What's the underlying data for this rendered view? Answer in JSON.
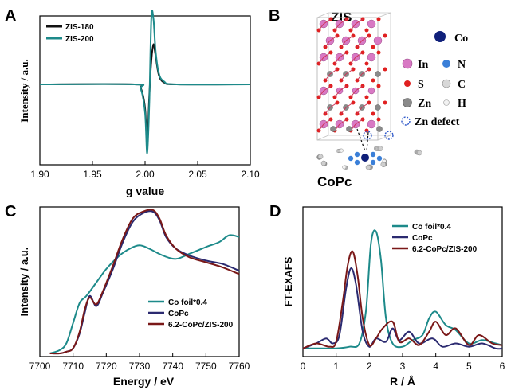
{
  "figure": {
    "panels": [
      {
        "letter": "A",
        "chart_data": {
          "type": "line",
          "xlabel": "g value",
          "ylabel": "Intensity / a.u.",
          "xlim": [
            1.9,
            2.1
          ],
          "xticks": [
            "1.90",
            "1.95",
            "2.00",
            "2.05",
            "2.10"
          ],
          "legend_position": "top-left",
          "series": [
            {
              "name": "ZIS-180",
              "color": "#111111",
              "x": [
                1.9,
                1.99,
                1.996,
                2.0,
                2.002,
                2.004,
                2.006,
                2.008,
                2.01,
                2.013,
                2.018,
                2.03,
                2.1
              ],
              "y": [
                0,
                0,
                -0.04,
                -0.25,
                -0.62,
                -0.12,
                0.25,
                0.42,
                0.3,
                0.1,
                0.02,
                0,
                0
              ]
            },
            {
              "name": "ZIS-200",
              "color": "#1d8a8a",
              "x": [
                1.9,
                1.99,
                1.996,
                2.0,
                2.002,
                2.004,
                2.006,
                2.008,
                2.01,
                2.013,
                2.018,
                2.03,
                2.1
              ],
              "y": [
                0,
                0,
                -0.05,
                -0.3,
                -0.72,
                -0.2,
                0.7,
                0.68,
                0.35,
                0.12,
                0.03,
                0,
                0
              ]
            }
          ]
        }
      },
      {
        "letter": "B",
        "title": "ZIS",
        "molecule_label": "CoPc",
        "legend": [
          {
            "label": "In",
            "color": "#d879c4"
          },
          {
            "label": "S",
            "color": "#e02020"
          },
          {
            "label": "Zn",
            "color": "#8a8a8a"
          },
          {
            "label": "Zn defect",
            "color": "#2a55c8"
          },
          {
            "label": "Co",
            "color": "#10207a"
          },
          {
            "label": "N",
            "color": "#3a7fd8"
          },
          {
            "label": "C",
            "color": "#d8d8d8"
          },
          {
            "label": "H",
            "color": "#f2f2f2"
          }
        ]
      },
      {
        "letter": "C",
        "chart_data": {
          "type": "line",
          "xlabel": "Energy / eV",
          "ylabel": "Intensity / a.u.",
          "xlim": [
            7700,
            7760
          ],
          "xticks": [
            "7700",
            "7710",
            "7720",
            "7730",
            "7740",
            "7750",
            "7760"
          ],
          "legend_position": "bottom-left",
          "series": [
            {
              "name": "Co foil*0.4",
              "color": "#1d8a8a",
              "x": [
                7703,
                7706,
                7708,
                7710,
                7712,
                7714,
                7717,
                7720,
                7724,
                7727,
                7730,
                7733,
                7737,
                7741,
                7745,
                7750,
                7754,
                7757,
                7760
              ],
              "y": [
                0.0,
                0.02,
                0.06,
                0.18,
                0.3,
                0.34,
                0.42,
                0.5,
                0.58,
                0.62,
                0.64,
                0.62,
                0.58,
                0.56,
                0.59,
                0.63,
                0.66,
                0.7,
                0.69
              ]
            },
            {
              "name": "CoPc",
              "color": "#2b2a70",
              "x": [
                7703,
                7706,
                7708,
                7710,
                7712,
                7713.5,
                7715,
                7717,
                7719,
                7722,
                7725,
                7728,
                7731,
                7734,
                7736,
                7738,
                7741,
                7745,
                7750,
                7755,
                7760
              ],
              "y": [
                0.0,
                0.0,
                0.01,
                0.03,
                0.12,
                0.24,
                0.34,
                0.28,
                0.36,
                0.5,
                0.66,
                0.78,
                0.83,
                0.84,
                0.79,
                0.69,
                0.62,
                0.58,
                0.55,
                0.53,
                0.49
              ]
            },
            {
              "name": "6.2-CoPc/ZIS-200",
              "color": "#7a1818",
              "x": [
                7703,
                7706,
                7708,
                7710,
                7712,
                7713.5,
                7715,
                7717,
                7719,
                7722,
                7725,
                7728,
                7731,
                7734,
                7736,
                7738,
                7741,
                7745,
                7750,
                7755,
                7760
              ],
              "y": [
                0.0,
                0.0,
                0.01,
                0.03,
                0.13,
                0.26,
                0.33,
                0.29,
                0.37,
                0.52,
                0.68,
                0.8,
                0.84,
                0.85,
                0.8,
                0.7,
                0.62,
                0.57,
                0.54,
                0.51,
                0.47
              ]
            }
          ]
        }
      },
      {
        "letter": "D",
        "chart_data": {
          "type": "line",
          "xlabel": "R / Å",
          "ylabel": "FT-EXAFS",
          "xlim": [
            0,
            6
          ],
          "xticks": [
            "0",
            "1",
            "2",
            "3",
            "4",
            "5",
            "6"
          ],
          "legend_position": "top-right",
          "series": [
            {
              "name": "Co foil*0.4",
              "color": "#1d8a8a",
              "x": [
                0,
                0.6,
                1.0,
                1.4,
                1.7,
                1.9,
                2.05,
                2.2,
                2.35,
                2.5,
                2.7,
                3.0,
                3.3,
                3.6,
                3.8,
                4.0,
                4.3,
                4.6,
                5.0,
                5.4,
                5.8,
                6.0
              ],
              "y": [
                0.02,
                0.02,
                0.02,
                0.03,
                0.05,
                0.25,
                0.65,
                0.72,
                0.55,
                0.2,
                0.05,
                0.03,
                0.07,
                0.1,
                0.2,
                0.24,
                0.16,
                0.13,
                0.05,
                0.07,
                0.05,
                0.04
              ]
            },
            {
              "name": "CoPc",
              "color": "#2b2a70",
              "x": [
                0,
                0.4,
                0.7,
                0.9,
                1.1,
                1.3,
                1.45,
                1.6,
                1.8,
                2.0,
                2.2,
                2.5,
                2.7,
                2.9,
                3.2,
                3.5,
                3.9,
                4.2,
                4.6,
                5.0,
                5.4,
                5.8,
                6.0
              ],
              "y": [
                0.02,
                0.05,
                0.08,
                0.05,
                0.1,
                0.38,
                0.5,
                0.4,
                0.12,
                0.03,
                0.08,
                0.06,
                0.14,
                0.07,
                0.12,
                0.05,
                0.08,
                0.03,
                0.05,
                0.03,
                0.05,
                0.02,
                0.02
              ]
            },
            {
              "name": "6.2-CoPc/ZIS-200",
              "color": "#7a1818",
              "x": [
                0,
                0.4,
                0.8,
                1.0,
                1.2,
                1.35,
                1.5,
                1.65,
                1.8,
                2.0,
                2.2,
                2.4,
                2.7,
                2.9,
                3.2,
                3.5,
                3.8,
                4.0,
                4.3,
                4.6,
                5.0,
                5.3,
                5.7,
                6.0
              ],
              "y": [
                0.02,
                0.05,
                0.03,
                0.06,
                0.3,
                0.52,
                0.6,
                0.45,
                0.2,
                0.04,
                0.08,
                0.14,
                0.18,
                0.06,
                0.08,
                0.04,
                0.12,
                0.18,
                0.1,
                0.14,
                0.04,
                0.1,
                0.05,
                0.04
              ]
            }
          ]
        }
      }
    ]
  }
}
